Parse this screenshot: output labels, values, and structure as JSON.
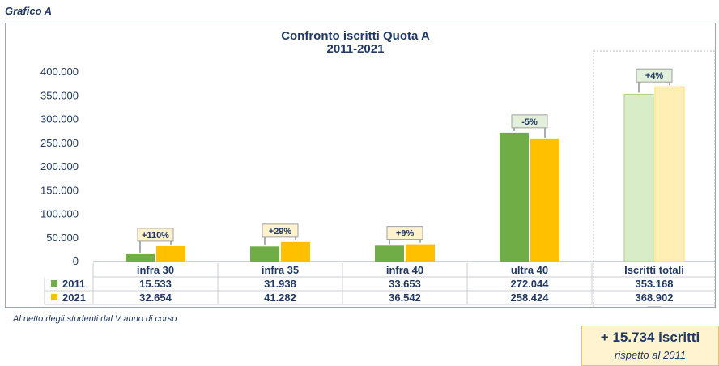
{
  "figure_label": "Grafico A",
  "footnote": "Al netto degli studenti dal V anno di corso",
  "callout": {
    "title": "+ 15.734 iscritti",
    "subtitle": "rispetto al 2011"
  },
  "colors": {
    "2011": "#70ad47",
    "2021": "#ffc000",
    "2011_light": "#d7ecc7",
    "2021_light": "#ffefb5",
    "text": "#1f3864"
  },
  "chart_data": {
    "type": "bar",
    "title": "Confronto iscritti Quota A",
    "subtitle": "2011-2021",
    "categories": [
      "infra 30",
      "infra 35",
      "infra 40",
      "ultra 40",
      "Iscritti totali"
    ],
    "series": [
      {
        "name": "2011",
        "values": [
          15533,
          31938,
          33653,
          272044,
          353168
        ],
        "labels": [
          "15.533",
          "31.938",
          "33.653",
          "272.044",
          "353.168"
        ]
      },
      {
        "name": "2021",
        "values": [
          32654,
          41282,
          36542,
          258424,
          368902
        ],
        "labels": [
          "32.654",
          "41.282",
          "36.542",
          "258.424",
          "368.902"
        ]
      }
    ],
    "change_labels": [
      "+110%",
      "+29%",
      "+9%",
      "-5%",
      "+4%"
    ],
    "ylim": [
      0,
      400000
    ],
    "yticks": [
      0,
      50000,
      100000,
      150000,
      200000,
      250000,
      300000,
      350000,
      400000
    ],
    "ytick_labels": [
      "0",
      "50.000",
      "100.000",
      "150.000",
      "200.000",
      "250.000",
      "300.000",
      "350.000",
      "400.000"
    ],
    "legend": "data-table",
    "grid": false
  }
}
